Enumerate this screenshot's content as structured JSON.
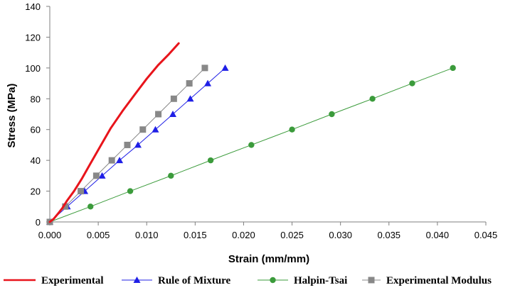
{
  "chart_data": {
    "type": "line",
    "title": "",
    "xlabel": "Strain (mm/mm)",
    "ylabel": "Stress (MPa)",
    "xlim": [
      0,
      0.045
    ],
    "ylim": [
      0,
      140
    ],
    "x_ticks": [
      0,
      0.005,
      0.01,
      0.015,
      0.02,
      0.025,
      0.03,
      0.035,
      0.04,
      0.045
    ],
    "x_tick_labels": [
      "0.000",
      "0.005",
      "0.010",
      "0.015",
      "0.020",
      "0.025",
      "0.030",
      "0.035",
      "0.040",
      "0.045"
    ],
    "y_ticks": [
      0,
      20,
      40,
      60,
      80,
      100,
      120,
      140
    ],
    "y_tick_labels": [
      "0",
      "20",
      "40",
      "60",
      "80",
      "100",
      "120",
      "140"
    ],
    "grid": false,
    "legend_position": "bottom",
    "series": [
      {
        "name": "Experimental",
        "marker": "none",
        "color": "#e8141b",
        "x": [
          0,
          0.0004,
          0.0008,
          0.0013,
          0.0018,
          0.0025,
          0.0033,
          0.0042,
          0.0052,
          0.0063,
          0.0075,
          0.0088,
          0.01,
          0.0112,
          0.0123,
          0.0133
        ],
        "y": [
          0,
          2,
          5,
          9,
          14,
          20,
          28,
          38,
          49,
          61,
          72,
          83,
          93,
          102,
          109,
          116
        ]
      },
      {
        "name": "Rule of Mixture",
        "marker": "triangle",
        "color": "#1f1fe6",
        "x": [
          0,
          0.0018,
          0.0036,
          0.0054,
          0.0072,
          0.0091,
          0.0109,
          0.0127,
          0.0145,
          0.0163,
          0.0181
        ],
        "y": [
          0,
          10,
          20,
          30,
          40,
          50,
          60,
          70,
          80,
          90,
          100
        ]
      },
      {
        "name": "Halpin-Tsai",
        "marker": "circle",
        "color": "#3b9b3b",
        "x": [
          0,
          0.0042,
          0.0083,
          0.0125,
          0.0166,
          0.0208,
          0.025,
          0.0291,
          0.0333,
          0.0374,
          0.0416
        ],
        "y": [
          0,
          10,
          20,
          30,
          40,
          50,
          60,
          70,
          80,
          90,
          100
        ]
      },
      {
        "name": "Experimental Modulus",
        "marker": "square",
        "color": "#888888",
        "x": [
          0,
          0.0016,
          0.0032,
          0.0048,
          0.0064,
          0.008,
          0.0096,
          0.0112,
          0.0128,
          0.0144,
          0.016
        ],
        "y": [
          0,
          10,
          20,
          30,
          40,
          50,
          60,
          70,
          80,
          90,
          100
        ]
      }
    ]
  }
}
